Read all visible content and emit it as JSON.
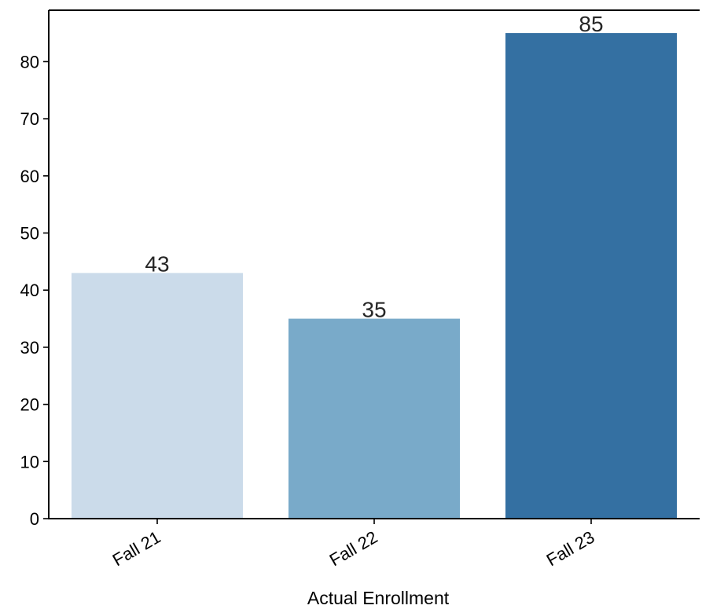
{
  "chart_data": {
    "type": "bar",
    "title": "",
    "xlabel": "Actual Enrollment",
    "ylabel": "",
    "categories": [
      "Fall 21",
      "Fall 22",
      "Fall 23"
    ],
    "values": [
      43,
      35,
      85
    ],
    "data_labels": [
      "43",
      "35",
      "85"
    ],
    "bar_colors": [
      "#cbdbea",
      "#79aac9",
      "#3470a2"
    ],
    "ylim": [
      0,
      89
    ],
    "yticks": [
      0,
      10,
      20,
      30,
      40,
      50,
      60,
      70,
      80
    ],
    "grid": false,
    "legend": "none"
  }
}
